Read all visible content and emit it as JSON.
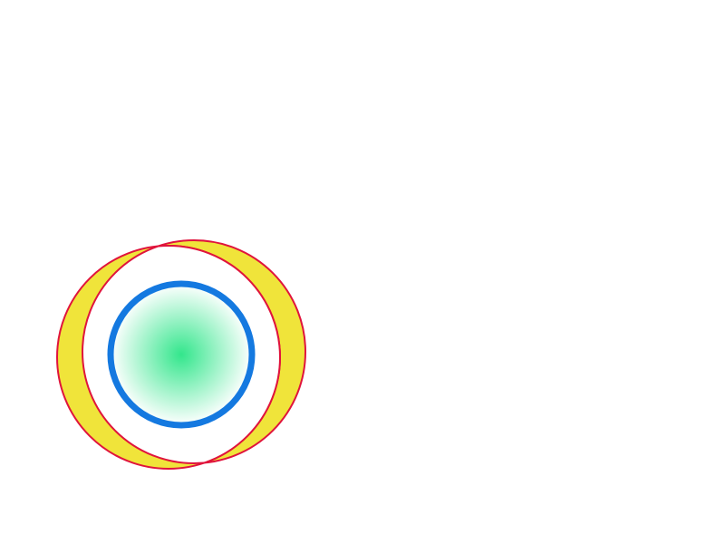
{
  "colors": {
    "background": "#ffffff",
    "ring_fill": "#f0e43a",
    "ring_stroke": "#e0143c",
    "inner_fill": "#ffffff",
    "disc_stroke": "#1479e0",
    "disc_center": "#33e68c",
    "disc_edge": "#ffffff"
  },
  "icons": {
    "outer_shape": "crescent-ring-icon",
    "inner_shape": "gradient-disc-icon"
  }
}
